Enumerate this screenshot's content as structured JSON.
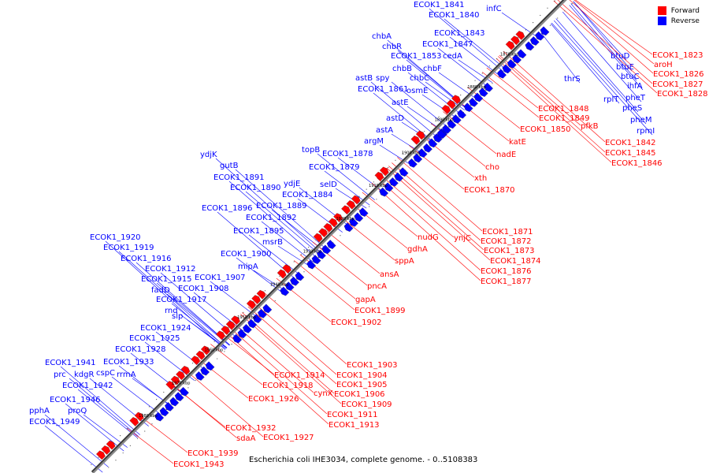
{
  "colors": {
    "forward": "#ff0000",
    "reverse": "#0000ff",
    "backbone": "#888888",
    "shadow": "#333333"
  },
  "legend": {
    "forward": "Forward",
    "reverse": "Reverse"
  },
  "caption": "Escherichia coli IHE3034, complete genome. - 0..5108383",
  "ticks": [
    "1870 kbp",
    "1880 kbp",
    "1890 kbp",
    "1900 kbp",
    "1910 kbp",
    "1920 kbp",
    "1930 kbp",
    "1940 kbp",
    "1950 kbp",
    "1960 kbp",
    "1970 kbp",
    "1980 kbp"
  ],
  "reverse_labels": [
    "infC",
    "ECOK1_1841",
    "ECOK1_1840",
    "ECOK1_1843",
    "ECOK1_1847",
    "chbA",
    "chbR",
    "ECOK1_1853",
    "cedA",
    "chbB",
    "chbF",
    "chbC",
    "spy",
    "astB",
    "ECOK1_1861",
    "osmE",
    "astE",
    "astD",
    "astA",
    "argM",
    "topB",
    "ECOK1_1878",
    "ECOK1_1879",
    "selD",
    "ydjE",
    "ECOK1_1884",
    "ydjK",
    "gutB",
    "ECOK1_1891",
    "ECOK1_1890",
    "ECOK1_1889",
    "ECOK1_1896",
    "ECOK1_1892",
    "ECOK1_1895",
    "msrB",
    "ECOK1_1900",
    "mipA",
    "ECOK1_1920",
    "ECOK1_1919",
    "ECOK1_1916",
    "ECOK1_1912",
    "ECOK1_1907",
    "ECOK1_1915",
    "ECOK1_1908",
    "fadD",
    "ECOK1_1917",
    "rnd",
    "slp",
    "ECOK1_1924",
    "ECOK1_1925",
    "ECOK1_1928",
    "ECOK1_1933",
    "rrmA",
    "cspC",
    "ECOK1_1941",
    "prc",
    "kdgR",
    "ECOK1_1942",
    "ECOK1_1946",
    "pphA",
    "proQ",
    "ECOK1_1949",
    "btuD",
    "btuE",
    "btuC",
    "ihfA",
    "thrS",
    "pheT",
    "rplT",
    "pheS",
    "pheM",
    "rpmI"
  ],
  "forward_labels": [
    "ECOK1_1823",
    "aroH",
    "ECOK1_1826",
    "ECOK1_1827",
    "ECOK1_1828",
    "ECOK1_1848",
    "ECOK1_1849",
    "ECOK1_1850",
    "pfkB",
    "ECOK1_1842",
    "ECOK1_1845",
    "ECOK1_1846",
    "katE",
    "nadE",
    "cho",
    "xth",
    "ECOK1_1870",
    "ECOK1_1871",
    "ECOK1_1872",
    "ECOK1_1873",
    "ECOK1_1874",
    "ECOK1_1876",
    "ECOK1_1877",
    "nudG",
    "ynjC",
    "gdhA",
    "sppA",
    "ansA",
    "pncA",
    "gapA",
    "ECOK1_1899",
    "ECOK1_1902",
    "ECOK1_1903",
    "ECOK1_1904",
    "ECOK1_1905",
    "ECOK1_1906",
    "ECOK1_1909",
    "ECOK1_1911",
    "ECOK1_1913",
    "ECOK1_1914",
    "ECOK1_1918",
    "cynX",
    "ECOK1_1926",
    "ECOK1_1932",
    "sdaA",
    "ECOK1_1927",
    "ECOK1_1939",
    "ECOK1_1943"
  ]
}
